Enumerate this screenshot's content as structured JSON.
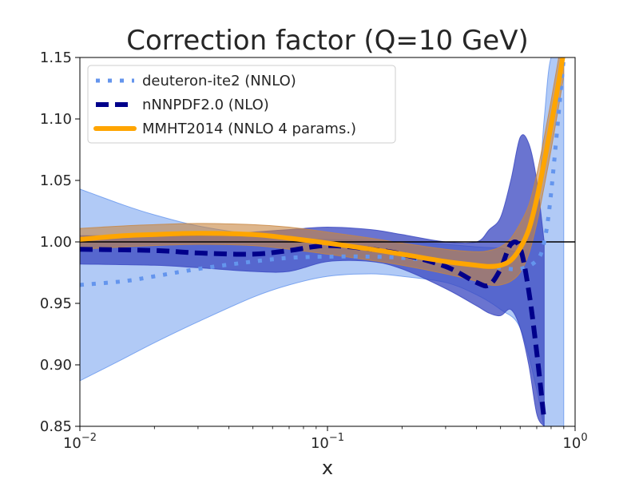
{
  "chart_data": {
    "type": "line",
    "title": "Correction factor (Q=10 GeV)",
    "xlabel": "x",
    "ylabel": "",
    "xscale": "log",
    "xlim": [
      0.01,
      1.0
    ],
    "ylim": [
      0.85,
      1.15
    ],
    "x_ticks": [
      {
        "value": 0.01,
        "base": "10",
        "exp": "−2"
      },
      {
        "value": 0.1,
        "base": "10",
        "exp": "−1"
      },
      {
        "value": 1.0,
        "base": "10",
        "exp": "0"
      }
    ],
    "y_ticks": [
      {
        "value": 0.85,
        "label": "0.85"
      },
      {
        "value": 0.9,
        "label": "0.90"
      },
      {
        "value": 0.95,
        "label": "0.95"
      },
      {
        "value": 1.0,
        "label": "1.00"
      },
      {
        "value": 1.05,
        "label": "1.05"
      },
      {
        "value": 1.1,
        "label": "1.10"
      },
      {
        "value": 1.15,
        "label": "1.15"
      }
    ],
    "reference_line": 1.0,
    "legend_position": "top-left",
    "series": [
      {
        "name": "deuteron-ite2 (NNLO)",
        "color": "#6495ed",
        "style": "dotted",
        "band_color": "#6495ed",
        "x": [
          0.01,
          0.015,
          0.02,
          0.03,
          0.05,
          0.07,
          0.1,
          0.15,
          0.2,
          0.3,
          0.4,
          0.5,
          0.6,
          0.7,
          0.75,
          0.8,
          0.9
        ],
        "y": [
          0.965,
          0.968,
          0.972,
          0.978,
          0.984,
          0.987,
          0.988,
          0.988,
          0.987,
          0.984,
          0.981,
          0.979,
          0.978,
          0.985,
          1.0,
          1.04,
          1.15
        ],
        "lower": [
          0.887,
          0.905,
          0.918,
          0.935,
          0.955,
          0.965,
          0.972,
          0.974,
          0.972,
          0.967,
          0.957,
          0.945,
          0.93,
          0.88,
          0.85,
          0.85,
          0.85
        ],
        "upper": [
          1.043,
          1.03,
          1.022,
          1.013,
          1.006,
          1.003,
          1.002,
          1.001,
          1.0,
          0.998,
          0.996,
          0.995,
          0.995,
          1.03,
          1.1,
          1.15,
          1.15
        ]
      },
      {
        "name": "nNNPDF2.0 (NLO)",
        "color": "#00008b",
        "style": "dashed",
        "band_color": "#3846c0",
        "x": [
          0.01,
          0.02,
          0.03,
          0.05,
          0.07,
          0.1,
          0.15,
          0.2,
          0.3,
          0.4,
          0.45,
          0.5,
          0.55,
          0.6,
          0.65,
          0.7,
          0.75
        ],
        "y": [
          0.994,
          0.993,
          0.991,
          0.99,
          0.993,
          0.997,
          0.994,
          0.99,
          0.98,
          0.967,
          0.965,
          0.978,
          0.998,
          0.995,
          0.96,
          0.91,
          0.855
        ],
        "lower": [
          0.982,
          0.981,
          0.979,
          0.976,
          0.976,
          0.984,
          0.984,
          0.978,
          0.962,
          0.948,
          0.942,
          0.94,
          0.945,
          0.93,
          0.9,
          0.86,
          0.85
        ],
        "upper": [
          1.005,
          1.005,
          1.005,
          1.008,
          1.01,
          1.012,
          1.01,
          1.006,
          1.0,
          1.0,
          1.01,
          1.02,
          1.05,
          1.085,
          1.08,
          1.05,
          1.0
        ]
      },
      {
        "name": "MMHT2014 (NNLO 4 params.)",
        "color": "#ffa500",
        "style": "solid",
        "band_color": "#c88640",
        "x": [
          0.01,
          0.015,
          0.02,
          0.03,
          0.05,
          0.07,
          0.1,
          0.15,
          0.2,
          0.3,
          0.4,
          0.45,
          0.5,
          0.55,
          0.6,
          0.65,
          0.7,
          0.75,
          0.8,
          0.85,
          0.9
        ],
        "y": [
          1.002,
          1.005,
          1.006,
          1.007,
          1.006,
          1.003,
          0.999,
          0.994,
          0.99,
          0.984,
          0.981,
          0.98,
          0.981,
          0.985,
          0.995,
          1.01,
          1.035,
          1.065,
          1.095,
          1.125,
          1.155
        ],
        "lower": [
          0.994,
          0.996,
          0.997,
          0.998,
          0.997,
          0.994,
          0.99,
          0.985,
          0.981,
          0.974,
          0.968,
          0.965,
          0.965,
          0.968,
          0.975,
          0.99,
          1.015,
          1.045,
          1.075,
          1.105,
          1.135
        ],
        "upper": [
          1.011,
          1.013,
          1.014,
          1.015,
          1.014,
          1.012,
          1.008,
          1.003,
          0.999,
          0.994,
          0.992,
          0.993,
          0.996,
          1.003,
          1.015,
          1.03,
          1.055,
          1.085,
          1.115,
          1.145,
          1.175
        ]
      }
    ]
  }
}
